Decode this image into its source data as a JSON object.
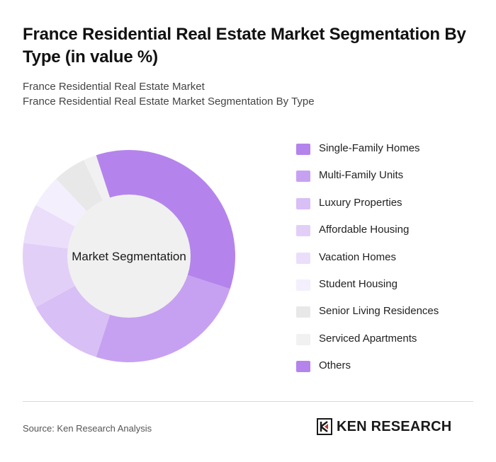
{
  "title": "France Residential Real Estate Market Segmentation By Type (in value %)",
  "breadcrumb": {
    "line1": "France Residential Real Estate Market",
    "line2": "France Residential Real Estate Market Segmentation By Type"
  },
  "chart_data": {
    "type": "pie",
    "donut": true,
    "center_label": "Market Segmentation",
    "categories": [
      "Single-Family Homes",
      "Multi-Family Units",
      "Luxury Properties",
      "Affordable Housing",
      "Vacation Homes",
      "Student Housing",
      "Senior Living Residences",
      "Serviced Apartments",
      "Others"
    ],
    "values": [
      30,
      25,
      12,
      10,
      6,
      5,
      5,
      2,
      5
    ],
    "colors": [
      "#b484ec",
      "#c7a1f1",
      "#d8bff6",
      "#e2cff8",
      "#ebdefa",
      "#f4effd",
      "#e8e8e8",
      "#f1f1f1",
      "#b484ec"
    ],
    "legend_position": "right"
  },
  "footer": {
    "source": "Source: Ken Research Analysis",
    "logo_text": "KEN RESEARCH"
  }
}
